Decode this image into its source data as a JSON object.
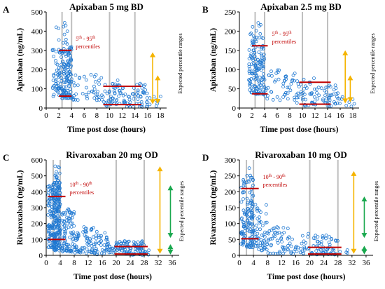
{
  "colors": {
    "point": "#1f78d1",
    "median_line": "#c00000",
    "vline": "#bfbfbf",
    "arrow_outer": "#f5b400",
    "arrow_inner": "#19a84e"
  },
  "chart_data": [
    {
      "type": "scatter",
      "panel": "A",
      "title": "Apixaban 5 mg BD",
      "xlabel": "Time post dose (hours)",
      "ylabel": "Apixaban (ng/mL)",
      "xlim": [
        0,
        19
      ],
      "ylim": [
        0,
        500
      ],
      "xticks": [
        0,
        2,
        4,
        6,
        8,
        10,
        12,
        14,
        16,
        18
      ],
      "yticks": [
        0,
        100,
        200,
        300,
        400,
        500
      ],
      "annotation": {
        "main": "5",
        "sup1": "th",
        "mid": " - 95",
        "sup2": "th",
        "line2": "percentiles"
      },
      "side_label": "Expected percentile ranges",
      "vlines": [
        2.5,
        4,
        10,
        14
      ],
      "percentile_lines": [
        {
          "x": [
            2,
            4
          ],
          "y": 300
        },
        {
          "x": [
            2,
            4
          ],
          "y": 62
        },
        {
          "x": [
            9,
            15
          ],
          "y": 113
        },
        {
          "x": [
            9,
            15
          ],
          "y": 18
        }
      ],
      "arrow_outer": {
        "x": 16.8,
        "y": [
          20,
          290
        ]
      },
      "arrow_inner": {
        "x": 17.6,
        "y": [
          22,
          170
        ]
      },
      "clusters": [
        {
          "x": [
            1,
            2.5
          ],
          "y": [
            60,
            330
          ],
          "n": 60
        },
        {
          "x": [
            2.5,
            4
          ],
          "y": [
            50,
            320
          ],
          "n": 110
        },
        {
          "x": [
            1.5,
            3.5
          ],
          "y": [
            330,
            500
          ],
          "n": 12
        },
        {
          "x": [
            4,
            9
          ],
          "y": [
            40,
            180
          ],
          "n": 45
        },
        {
          "x": [
            9,
            12
          ],
          "y": [
            10,
            150
          ],
          "n": 45
        },
        {
          "x": [
            12,
            16
          ],
          "y": [
            5,
            130
          ],
          "n": 55
        },
        {
          "x": [
            16,
            18.2
          ],
          "y": [
            5,
            60
          ],
          "n": 8
        }
      ]
    },
    {
      "type": "scatter",
      "panel": "B",
      "title": "Apixaban 2.5 mg BD",
      "xlabel": "Time post dose (hours)",
      "ylabel": "Apixaban (ng/mL)",
      "xlim": [
        0,
        19
      ],
      "ylim": [
        0,
        250
      ],
      "xticks": [
        0,
        2,
        4,
        6,
        8,
        10,
        12,
        14,
        16,
        18
      ],
      "yticks": [
        0,
        50,
        100,
        150,
        200,
        250
      ],
      "annotation": {
        "main": "5",
        "sup1": "th",
        "mid": " - 95",
        "sup2": "th",
        "line2": "percentiles"
      },
      "side_label": "Expected percentile ranges",
      "vlines": [
        2.5,
        4,
        10,
        14
      ],
      "percentile_lines": [
        {
          "x": [
            2,
            4.5
          ],
          "y": 162
        },
        {
          "x": [
            2,
            4.5
          ],
          "y": 37
        },
        {
          "x": [
            9.5,
            14.5
          ],
          "y": 67
        },
        {
          "x": [
            9.5,
            14.5
          ],
          "y": 10
        }
      ],
      "arrow_outer": {
        "x": 16.8,
        "y": [
          12,
          150
        ]
      },
      "arrow_inner": {
        "x": 17.6,
        "y": [
          15,
          85
        ]
      },
      "clusters": [
        {
          "x": [
            1.5,
            2.5
          ],
          "y": [
            40,
            200
          ],
          "n": 55
        },
        {
          "x": [
            2.5,
            4
          ],
          "y": [
            35,
            190
          ],
          "n": 90
        },
        {
          "x": [
            2,
            3.5
          ],
          "y": [
            190,
            230
          ],
          "n": 6
        },
        {
          "x": [
            4,
            9
          ],
          "y": [
            20,
            100
          ],
          "n": 50
        },
        {
          "x": [
            9,
            12
          ],
          "y": [
            5,
            80
          ],
          "n": 40
        },
        {
          "x": [
            12,
            16
          ],
          "y": [
            5,
            60
          ],
          "n": 45
        },
        {
          "x": [
            16,
            18.5
          ],
          "y": [
            3,
            30
          ],
          "n": 8
        }
      ]
    },
    {
      "type": "scatter",
      "panel": "C",
      "title": "Rivaroxaban 20 mg OD",
      "xlabel": "Time post dose (hours)",
      "ylabel": "Rivaroxaban (ng/mL)",
      "xlim": [
        0,
        38
      ],
      "ylim": [
        0,
        600
      ],
      "xticks": [
        0,
        4,
        8,
        12,
        16,
        20,
        24,
        28,
        32,
        36
      ],
      "yticks": [
        0,
        100,
        200,
        300,
        400,
        500,
        600
      ],
      "annotation": {
        "main": "10",
        "sup1": "th",
        "mid": " - 90",
        "sup2": "th",
        "line2": "percentiles"
      },
      "side_label": "Expected percentile ranges",
      "vlines": [
        2,
        4,
        20,
        28
      ],
      "percentile_lines": [
        {
          "x": [
            0.5,
            5.5
          ],
          "y": 370
        },
        {
          "x": [
            0.5,
            5.5
          ],
          "y": 100
        },
        {
          "x": [
            19.5,
            29
          ],
          "y": 55
        },
        {
          "x": [
            19.5,
            29
          ],
          "y": 8
        }
      ],
      "arrow_outer": {
        "x": 32.5,
        "y": [
          10,
          560
        ]
      },
      "arrow_inner": {
        "x": 35.5,
        "y": [
          5,
          70
        ]
      },
      "arrow_middle": {
        "x": 35.5,
        "y": [
          110,
          440
        ]
      },
      "clusters": [
        {
          "x": [
            0.5,
            2
          ],
          "y": [
            50,
            450
          ],
          "n": 80
        },
        {
          "x": [
            2,
            4
          ],
          "y": [
            30,
            480
          ],
          "n": 200
        },
        {
          "x": [
            2,
            4
          ],
          "y": [
            480,
            580
          ],
          "n": 10
        },
        {
          "x": [
            4,
            8
          ],
          "y": [
            20,
            300
          ],
          "n": 90
        },
        {
          "x": [
            8,
            14
          ],
          "y": [
            10,
            180
          ],
          "n": 70
        },
        {
          "x": [
            14,
            20
          ],
          "y": [
            5,
            150
          ],
          "n": 50
        },
        {
          "x": [
            20,
            28
          ],
          "y": [
            2,
            90
          ],
          "n": 90
        },
        {
          "x": [
            28,
            30
          ],
          "y": [
            2,
            40
          ],
          "n": 6
        }
      ]
    },
    {
      "type": "scatter",
      "panel": "D",
      "title": "Rivaroxaban 10 mg OD",
      "xlabel": "Time post dose (hours)",
      "ylabel": "Rivaroxaban (ng/mL)",
      "xlim": [
        0,
        38
      ],
      "ylim": [
        0,
        300
      ],
      "xticks": [
        0,
        4,
        8,
        12,
        16,
        20,
        24,
        28,
        32,
        36
      ],
      "yticks": [
        0,
        50,
        100,
        150,
        200,
        250,
        300
      ],
      "annotation": {
        "main": "10",
        "sup1": "th",
        "mid": " - 90",
        "sup2": "th",
        "line2": "percentiles"
      },
      "side_label": "Expected percentile ranges",
      "vlines": [
        2,
        4,
        20,
        28
      ],
      "percentile_lines": [
        {
          "x": [
            0.5,
            5.5
          ],
          "y": 210
        },
        {
          "x": [
            0.5,
            5.5
          ],
          "y": 52
        },
        {
          "x": [
            19.5,
            29
          ],
          "y": 25
        },
        {
          "x": [
            19.5,
            29
          ],
          "y": 4
        }
      ],
      "arrow_outer": {
        "x": 32.5,
        "y": [
          5,
          265
        ]
      },
      "arrow_inner": {
        "x": 35.5,
        "y": [
          3,
          30
        ]
      },
      "arrow_middle": {
        "x": 35.5,
        "y": [
          55,
          185
        ]
      },
      "clusters": [
        {
          "x": [
            0.5,
            2
          ],
          "y": [
            30,
            240
          ],
          "n": 45
        },
        {
          "x": [
            2,
            4
          ],
          "y": [
            25,
            250
          ],
          "n": 90
        },
        {
          "x": [
            2,
            3.5
          ],
          "y": [
            250,
            280
          ],
          "n": 3
        },
        {
          "x": [
            4,
            8
          ],
          "y": [
            15,
            160
          ],
          "n": 55
        },
        {
          "x": [
            8,
            14
          ],
          "y": [
            5,
            90
          ],
          "n": 45
        },
        {
          "x": [
            14,
            20
          ],
          "y": [
            3,
            70
          ],
          "n": 30
        },
        {
          "x": [
            20,
            28
          ],
          "y": [
            2,
            65
          ],
          "n": 60
        },
        {
          "x": [
            28,
            31
          ],
          "y": [
            2,
            20
          ],
          "n": 4
        }
      ]
    }
  ]
}
